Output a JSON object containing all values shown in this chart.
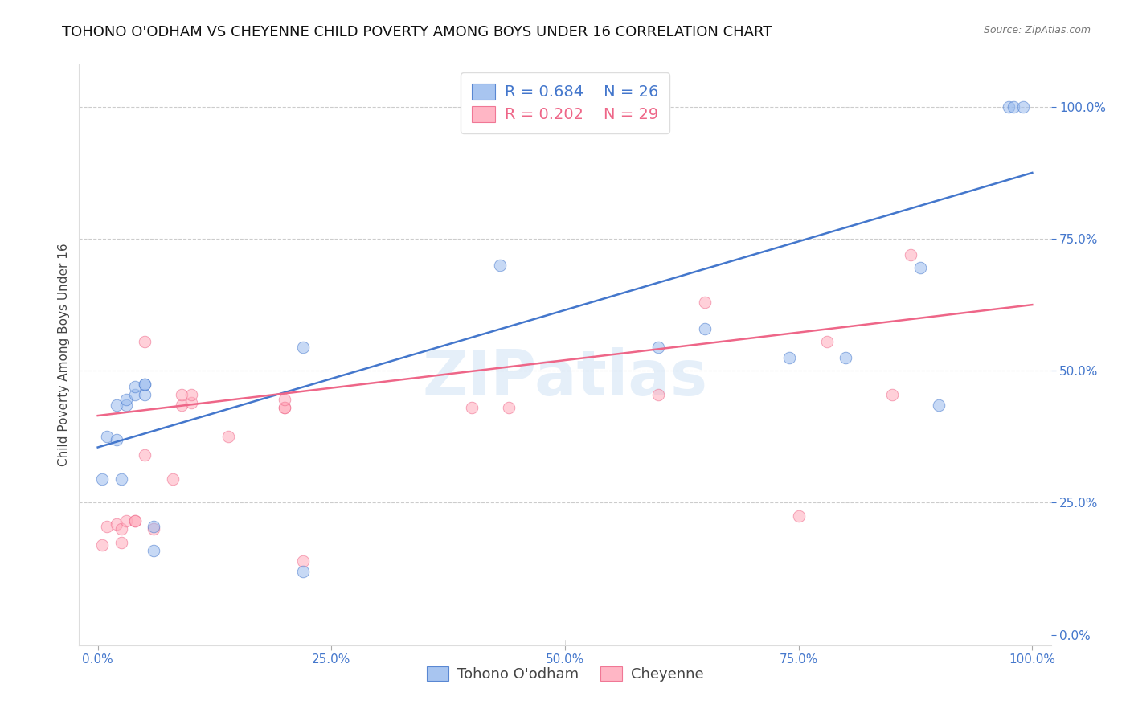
{
  "title": "TOHONO O'ODHAM VS CHEYENNE CHILD POVERTY AMONG BOYS UNDER 16 CORRELATION CHART",
  "source": "Source: ZipAtlas.com",
  "ylabel": "Child Poverty Among Boys Under 16",
  "watermark": "ZIPatlas",
  "blue_label": "Tohono O'odham",
  "pink_label": "Cheyenne",
  "blue_R": "R = 0.684",
  "blue_N": "N = 26",
  "pink_R": "R = 0.202",
  "pink_N": "N = 29",
  "blue_color": "#99BBEE",
  "pink_color": "#FFAABB",
  "blue_line_color": "#4477CC",
  "pink_line_color": "#EE6688",
  "right_axis_color": "#4477CC",
  "xlim": [
    -0.02,
    1.02
  ],
  "ylim": [
    -0.02,
    1.08
  ],
  "xticks": [
    0.0,
    0.25,
    0.5,
    0.75,
    1.0
  ],
  "yticks_right": [
    0.0,
    0.25,
    0.5,
    0.75,
    1.0
  ],
  "xtick_labels": [
    "0.0%",
    "25.0%",
    "50.0%",
    "75.0%",
    "100.0%"
  ],
  "ytick_labels_right": [
    "0.0%",
    "25.0%",
    "50.0%",
    "75.0%",
    "100.0%"
  ],
  "blue_x": [
    0.005,
    0.01,
    0.02,
    0.02,
    0.025,
    0.03,
    0.03,
    0.04,
    0.04,
    0.05,
    0.05,
    0.05,
    0.06,
    0.06,
    0.22,
    0.22,
    0.43,
    0.6,
    0.65,
    0.74,
    0.8,
    0.88,
    0.9,
    0.975,
    0.98,
    0.99
  ],
  "blue_y": [
    0.295,
    0.375,
    0.435,
    0.37,
    0.295,
    0.435,
    0.445,
    0.455,
    0.47,
    0.455,
    0.475,
    0.475,
    0.16,
    0.205,
    0.12,
    0.545,
    0.7,
    0.545,
    0.58,
    0.525,
    0.525,
    0.695,
    0.435,
    1.0,
    1.0,
    1.0
  ],
  "pink_x": [
    0.005,
    0.01,
    0.02,
    0.025,
    0.025,
    0.03,
    0.04,
    0.04,
    0.05,
    0.05,
    0.06,
    0.08,
    0.09,
    0.09,
    0.1,
    0.1,
    0.14,
    0.2,
    0.2,
    0.2,
    0.22,
    0.4,
    0.44,
    0.6,
    0.65,
    0.75,
    0.78,
    0.85,
    0.87
  ],
  "pink_y": [
    0.17,
    0.205,
    0.21,
    0.175,
    0.2,
    0.215,
    0.215,
    0.215,
    0.555,
    0.34,
    0.2,
    0.295,
    0.435,
    0.455,
    0.44,
    0.455,
    0.375,
    0.43,
    0.43,
    0.445,
    0.14,
    0.43,
    0.43,
    0.455,
    0.63,
    0.225,
    0.555,
    0.455,
    0.72
  ],
  "blue_line_x0": 0.0,
  "blue_line_x1": 1.0,
  "blue_line_y0": 0.355,
  "blue_line_y1": 0.875,
  "pink_line_x0": 0.0,
  "pink_line_x1": 1.0,
  "pink_line_y0": 0.415,
  "pink_line_y1": 0.625,
  "grid_color": "#CCCCCC",
  "background_color": "#FFFFFF",
  "title_fontsize": 13,
  "label_fontsize": 11,
  "tick_fontsize": 11,
  "marker_size": 110,
  "marker_alpha": 0.55,
  "legend_fontsize": 14
}
